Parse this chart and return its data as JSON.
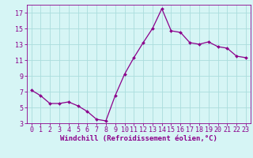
{
  "x": [
    0,
    1,
    2,
    3,
    4,
    5,
    6,
    7,
    8,
    9,
    10,
    11,
    12,
    13,
    14,
    15,
    16,
    17,
    18,
    19,
    20,
    21,
    22,
    23
  ],
  "y": [
    7.2,
    6.5,
    5.5,
    5.5,
    5.7,
    5.2,
    4.5,
    3.5,
    3.3,
    6.5,
    9.2,
    11.3,
    13.2,
    15.0,
    17.5,
    14.7,
    14.5,
    13.2,
    13.0,
    13.3,
    12.7,
    12.5,
    11.5,
    11.3
  ],
  "line_color": "#8B008B",
  "marker_color": "#8B008B",
  "bg_color": "#d6f5f5",
  "grid_color": "#aadddd",
  "xlabel": "Windchill (Refroidissement éolien,°C)",
  "xlabel_color": "#8B008B",
  "tick_color": "#8B008B",
  "spine_color": "#8B008B",
  "ylim": [
    3,
    18
  ],
  "xlim": [
    -0.5,
    23.5
  ],
  "yticks": [
    3,
    5,
    7,
    9,
    11,
    13,
    15,
    17
  ],
  "xticks": [
    0,
    1,
    2,
    3,
    4,
    5,
    6,
    7,
    8,
    9,
    10,
    11,
    12,
    13,
    14,
    15,
    16,
    17,
    18,
    19,
    20,
    21,
    22,
    23
  ],
  "tick_fontsize": 6.0,
  "label_fontsize": 6.5,
  "marker_size": 2.0,
  "linewidth": 0.9
}
